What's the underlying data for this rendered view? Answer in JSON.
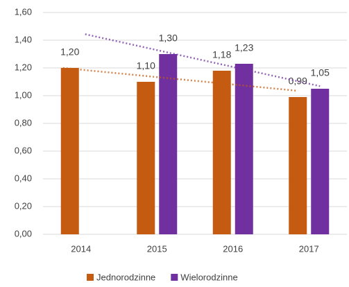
{
  "chart_data": {
    "type": "bar",
    "categories": [
      "2014",
      "2015",
      "2016",
      "2017"
    ],
    "series": [
      {
        "name": "Jednorodzinne",
        "color": "#c55a11",
        "values": [
          1.2,
          1.1,
          1.18,
          0.99
        ],
        "value_labels": [
          "1,20",
          "1,10",
          "1,18",
          "0,99"
        ]
      },
      {
        "name": "Wielorodzinne",
        "color": "#7030a0",
        "values": [
          null,
          1.3,
          1.23,
          1.05
        ],
        "value_labels": [
          null,
          "1,30",
          "1,23",
          "1,05"
        ]
      }
    ],
    "ylim": [
      0,
      1.6
    ],
    "yticks": [
      {
        "value": 0,
        "label": "0,00"
      },
      {
        "value": 0.2,
        "label": "0,20"
      },
      {
        "value": 0.4,
        "label": "0,40"
      },
      {
        "value": 0.6,
        "label": "0,60"
      },
      {
        "value": 0.8,
        "label": "0,80"
      },
      {
        "value": 1.0,
        "label": "1,00"
      },
      {
        "value": 1.2,
        "label": "1,20"
      },
      {
        "value": 1.4,
        "label": "1,40"
      },
      {
        "value": 1.6,
        "label": "1,60"
      }
    ],
    "grid": true,
    "trendline": "linear",
    "legend": "bottom"
  }
}
